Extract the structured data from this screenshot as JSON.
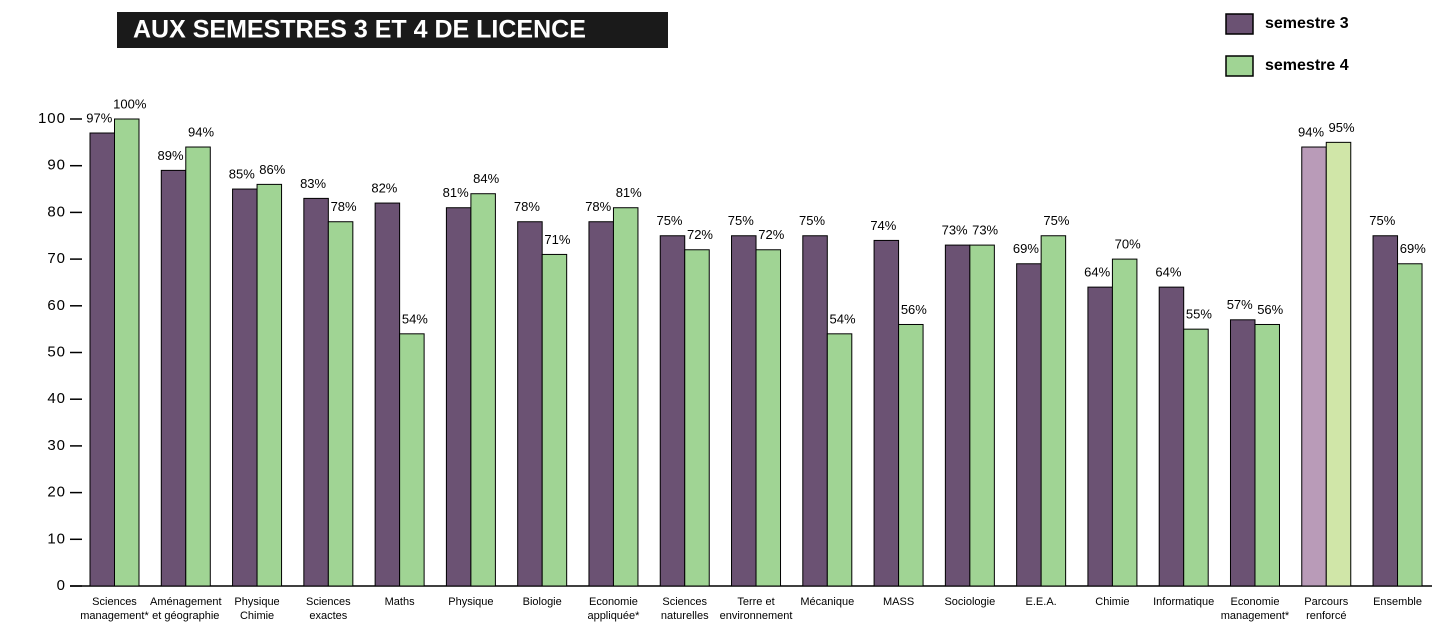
{
  "chart_data": {
    "type": "bar",
    "title": "AUX SEMESTRES 3 ET 4 DE LICENCE",
    "categories": [
      [
        "Sciences",
        "management*"
      ],
      [
        "Aménagement",
        "et géographie"
      ],
      [
        "Physique",
        "Chimie"
      ],
      [
        "Sciences",
        "exactes"
      ],
      [
        "Maths"
      ],
      [
        "Physique"
      ],
      [
        "Biologie"
      ],
      [
        "Economie",
        "appliquée*"
      ],
      [
        "Sciences",
        "naturelles"
      ],
      [
        "Terre et",
        "environnement"
      ],
      [
        "Mécanique"
      ],
      [
        "MASS"
      ],
      [
        "Sociologie"
      ],
      [
        "E.E.A."
      ],
      [
        "Chimie"
      ],
      [
        "Informatique"
      ],
      [
        "Economie",
        "management*"
      ],
      [
        "Parcours",
        "renforcé"
      ],
      [
        "Ensemble"
      ]
    ],
    "series": [
      {
        "name": "semestre 3",
        "color": "#6b5273",
        "colors": [
          "#6b5273",
          "#6b5273",
          "#6b5273",
          "#6b5273",
          "#6b5273",
          "#6b5273",
          "#6b5273",
          "#6b5273",
          "#6b5273",
          "#6b5273",
          "#6b5273",
          "#6b5273",
          "#6b5273",
          "#6b5273",
          "#6b5273",
          "#6b5273",
          "#6b5273",
          "#b99bb8",
          "#6b5273"
        ],
        "values": [
          97,
          89,
          85,
          83,
          82,
          81,
          78,
          78,
          75,
          75,
          75,
          74,
          73,
          69,
          64,
          64,
          57,
          94,
          75
        ],
        "value_labels": [
          "97%",
          "89%",
          "85%",
          "83%",
          "82%",
          "81%",
          "78%",
          "78%",
          "75%",
          "75%",
          "75%",
          "74%",
          "73%",
          "69%",
          "64%",
          "64%",
          "57%",
          "94%",
          "75%"
        ]
      },
      {
        "name": "semestre 4",
        "color": "#a0d494",
        "colors": [
          "#a0d494",
          "#a0d494",
          "#a0d494",
          "#a0d494",
          "#a0d494",
          "#a0d494",
          "#a0d494",
          "#a0d494",
          "#a0d494",
          "#a0d494",
          "#a0d494",
          "#a0d494",
          "#a0d494",
          "#a0d494",
          "#a0d494",
          "#a0d494",
          "#a0d494",
          "#d0e6a8",
          "#a0d494"
        ],
        "values": [
          100,
          94,
          86,
          78,
          54,
          84,
          71,
          81,
          72,
          72,
          54,
          56,
          73,
          75,
          70,
          55,
          56,
          95,
          69
        ],
        "value_labels": [
          "100%",
          "94%",
          "86%",
          "78%",
          "54%",
          "84%",
          "71%",
          "81%",
          "72%",
          "72%",
          "54%",
          "56%",
          "73%",
          "75%",
          "70%",
          "55%",
          "56%",
          "95%",
          "69%"
        ]
      }
    ],
    "ylim": [
      0,
      100
    ],
    "yticks": [
      0,
      10,
      20,
      30,
      40,
      50,
      60,
      70,
      80,
      90,
      100
    ],
    "grid": false,
    "legend": "top-right"
  }
}
